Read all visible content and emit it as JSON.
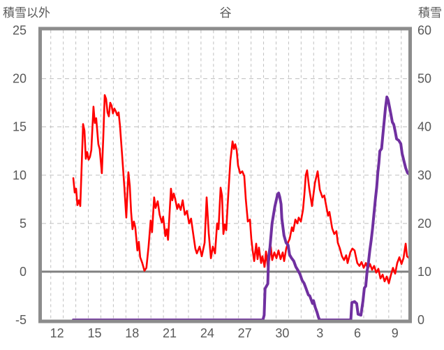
{
  "header": {
    "left_axis_title": "積雪以外",
    "title": "谷",
    "right_axis_title": "積雪"
  },
  "chart_data": {
    "type": "line",
    "title": "谷",
    "left_axis": {
      "title": "積雪以外",
      "min": -5,
      "max": 25,
      "ticks": [
        25,
        20,
        15,
        10,
        5,
        0,
        -5
      ]
    },
    "right_axis": {
      "title": "積雪",
      "min": 0,
      "max": 60,
      "ticks": [
        60,
        50,
        40,
        30,
        20,
        10,
        0
      ]
    },
    "x_axis": {
      "tick_labels": [
        "12",
        "15",
        "18",
        "21",
        "24",
        "27",
        "30",
        "3",
        "6",
        "9"
      ],
      "tick_day_indices": [
        0,
        3,
        6,
        9,
        12,
        15,
        18,
        21,
        24,
        27
      ],
      "gridline_every_days": 1,
      "day_range_shown": [
        -0.5,
        28.6
      ]
    },
    "grid": {
      "vertical_dashed": true,
      "horizontal_dashed": true,
      "zero_line_solid": true
    },
    "legend": "none",
    "colors": {
      "red_line": "#FF0000",
      "purple_line": "#7030A0",
      "frame": "#8C8C8C",
      "gridline": "#BFBFBF",
      "zero_line": "#808080",
      "text": "#595959"
    },
    "series": [
      {
        "name": "red-line-left-axis",
        "axis": "left",
        "color": "#FF0000",
        "width": 2.6,
        "points": [
          [
            1.3,
            9.7
          ],
          [
            1.41,
            8.2
          ],
          [
            1.52,
            8.6
          ],
          [
            1.63,
            6.9
          ],
          [
            1.75,
            7.4
          ],
          [
            1.86,
            6.8
          ],
          [
            1.97,
            11.0
          ],
          [
            2.08,
            15.3
          ],
          [
            2.19,
            14.6
          ],
          [
            2.3,
            11.7
          ],
          [
            2.41,
            12.4
          ],
          [
            2.52,
            11.6
          ],
          [
            2.63,
            11.9
          ],
          [
            2.74,
            12.6
          ],
          [
            2.91,
            17.1
          ],
          [
            3.02,
            15.4
          ],
          [
            3.13,
            15.9
          ],
          [
            3.3,
            13.2
          ],
          [
            3.41,
            12.7
          ],
          [
            3.58,
            10.2
          ],
          [
            3.7,
            14.0
          ],
          [
            3.81,
            18.3
          ],
          [
            3.92,
            17.9
          ],
          [
            4.03,
            16.5
          ],
          [
            4.14,
            16.1
          ],
          [
            4.25,
            17.5
          ],
          [
            4.36,
            17.2
          ],
          [
            4.47,
            16.4
          ],
          [
            4.58,
            16.9
          ],
          [
            4.7,
            16.6
          ],
          [
            4.81,
            16.2
          ],
          [
            4.92,
            16.5
          ],
          [
            5.03,
            15.1
          ],
          [
            5.2,
            12.1
          ],
          [
            5.37,
            8.9
          ],
          [
            5.53,
            5.6
          ],
          [
            5.7,
            10.3
          ],
          [
            5.81,
            8.9
          ],
          [
            5.92,
            6.2
          ],
          [
            6.03,
            4.4
          ],
          [
            6.14,
            5.2
          ],
          [
            6.25,
            4.6
          ],
          [
            6.42,
            2.2
          ],
          [
            6.53,
            3.1
          ],
          [
            6.64,
            1.5
          ],
          [
            6.81,
            0.9
          ],
          [
            6.98,
            0.1
          ],
          [
            7.14,
            0.4
          ],
          [
            7.31,
            2.6
          ],
          [
            7.48,
            5.3
          ],
          [
            7.59,
            4.1
          ],
          [
            7.76,
            7.7
          ],
          [
            7.87,
            6.6
          ],
          [
            8.04,
            7.3
          ],
          [
            8.2,
            5.9
          ],
          [
            8.37,
            5.1
          ],
          [
            8.48,
            5.7
          ],
          [
            8.65,
            3.7
          ],
          [
            8.76,
            4.4
          ],
          [
            8.87,
            3.3
          ],
          [
            9.1,
            8.6
          ],
          [
            9.21,
            7.4
          ],
          [
            9.32,
            8.1
          ],
          [
            9.43,
            7.6
          ],
          [
            9.6,
            6.5
          ],
          [
            9.71,
            7.0
          ],
          [
            9.88,
            6.4
          ],
          [
            10.04,
            7.4
          ],
          [
            10.21,
            5.9
          ],
          [
            10.38,
            6.3
          ],
          [
            10.55,
            5.0
          ],
          [
            10.71,
            5.5
          ],
          [
            10.88,
            3.9
          ],
          [
            11.05,
            2.4
          ],
          [
            11.17,
            1.9
          ],
          [
            11.39,
            2.6
          ],
          [
            11.56,
            1.6
          ],
          [
            11.79,
            3.0
          ],
          [
            11.95,
            7.7
          ],
          [
            12.12,
            4.0
          ],
          [
            12.29,
            1.4
          ],
          [
            12.45,
            2.6
          ],
          [
            12.62,
            1.9
          ],
          [
            12.79,
            5.0
          ],
          [
            12.9,
            4.4
          ],
          [
            13.07,
            8.7
          ],
          [
            13.18,
            7.9
          ],
          [
            13.29,
            3.9
          ],
          [
            13.4,
            4.9
          ],
          [
            13.52,
            4.3
          ],
          [
            13.68,
            8.0
          ],
          [
            13.85,
            11.5
          ],
          [
            14.02,
            13.5
          ],
          [
            14.13,
            12.7
          ],
          [
            14.24,
            13.2
          ],
          [
            14.35,
            12.6
          ],
          [
            14.46,
            11.0
          ],
          [
            14.63,
            10.2
          ],
          [
            14.8,
            10.4
          ],
          [
            14.96,
            9.9
          ],
          [
            15.08,
            7.5
          ],
          [
            15.24,
            5.2
          ],
          [
            15.41,
            5.4
          ],
          [
            15.52,
            3.4
          ],
          [
            15.63,
            2.2
          ],
          [
            15.75,
            1.1
          ],
          [
            15.91,
            2.9
          ],
          [
            16.02,
            1.3
          ],
          [
            16.13,
            2.5
          ],
          [
            16.3,
            0.9
          ],
          [
            16.41,
            1.6
          ],
          [
            16.58,
            0.5
          ],
          [
            16.69,
            2.1
          ],
          [
            16.86,
            0.3
          ],
          [
            17.08,
            2.6
          ],
          [
            17.19,
            1.2
          ],
          [
            17.36,
            2.0
          ],
          [
            17.53,
            1.4
          ],
          [
            17.69,
            2.2
          ],
          [
            17.86,
            1.3
          ],
          [
            18.03,
            2.0
          ],
          [
            18.14,
            1.1
          ],
          [
            18.31,
            2.4
          ],
          [
            18.48,
            3.1
          ],
          [
            18.59,
            3.4
          ],
          [
            18.76,
            4.6
          ],
          [
            18.87,
            4.2
          ],
          [
            19.04,
            5.4
          ],
          [
            19.2,
            5.0
          ],
          [
            19.31,
            5.6
          ],
          [
            19.48,
            5.2
          ],
          [
            19.65,
            6.4
          ],
          [
            19.76,
            8.0
          ],
          [
            19.87,
            10.0
          ],
          [
            19.98,
            10.5
          ],
          [
            20.15,
            8.6
          ],
          [
            20.37,
            6.8
          ],
          [
            20.6,
            9.2
          ],
          [
            20.82,
            10.4
          ],
          [
            20.99,
            8.5
          ],
          [
            21.2,
            7.7
          ],
          [
            21.35,
            7.9
          ],
          [
            21.65,
            5.8
          ],
          [
            21.76,
            6.2
          ],
          [
            21.98,
            4.5
          ],
          [
            22.15,
            3.9
          ],
          [
            22.32,
            4.2
          ],
          [
            22.43,
            3.0
          ],
          [
            22.6,
            2.4
          ],
          [
            22.76,
            1.6
          ],
          [
            22.93,
            1.2
          ],
          [
            23.1,
            1.7
          ],
          [
            23.21,
            0.9
          ],
          [
            23.43,
            2.0
          ],
          [
            23.6,
            2.4
          ],
          [
            23.77,
            2.2
          ],
          [
            23.99,
            0.9
          ],
          [
            24.16,
            0.6
          ],
          [
            24.33,
            1.0
          ],
          [
            24.5,
            0.4
          ],
          [
            24.67,
            0.9
          ],
          [
            24.83,
            0.3
          ],
          [
            25.0,
            0.8
          ],
          [
            25.17,
            0.2
          ],
          [
            25.33,
            0.6
          ],
          [
            25.5,
            -0.1
          ],
          [
            25.67,
            0.3
          ],
          [
            25.84,
            -0.7
          ],
          [
            26.01,
            -0.3
          ],
          [
            26.17,
            -1.0
          ],
          [
            26.34,
            -0.5
          ],
          [
            26.51,
            -1.2
          ],
          [
            26.68,
            -0.3
          ],
          [
            26.84,
            0.4
          ],
          [
            27.01,
            -0.2
          ],
          [
            27.18,
            0.9
          ],
          [
            27.35,
            1.5
          ],
          [
            27.52,
            0.8
          ],
          [
            27.68,
            1.4
          ],
          [
            27.85,
            2.9
          ],
          [
            27.96,
            1.6
          ],
          [
            28.13,
            1.4
          ],
          [
            28.24,
            2.2
          ]
        ]
      },
      {
        "name": "purple-line-right-axis",
        "axis": "right",
        "color": "#7030A0",
        "width": 4,
        "points": [
          [
            1.3,
            0
          ],
          [
            16.45,
            0
          ],
          [
            16.55,
            1
          ],
          [
            16.62,
            6.5
          ],
          [
            16.73,
            7
          ],
          [
            16.84,
            7.5
          ],
          [
            16.9,
            13
          ],
          [
            17.01,
            15
          ],
          [
            17.18,
            20
          ],
          [
            17.4,
            23.5
          ],
          [
            17.62,
            26
          ],
          [
            17.7,
            26.3
          ],
          [
            17.79,
            25.5
          ],
          [
            17.9,
            24
          ],
          [
            17.96,
            21
          ],
          [
            18.13,
            17.5
          ],
          [
            18.3,
            16
          ],
          [
            18.46,
            15.5
          ],
          [
            18.58,
            13.5
          ],
          [
            18.74,
            12.8
          ],
          [
            18.91,
            12.2
          ],
          [
            19.08,
            11
          ],
          [
            19.24,
            10.3
          ],
          [
            19.41,
            9.5
          ],
          [
            19.58,
            8.2
          ],
          [
            19.74,
            7.6
          ],
          [
            19.91,
            6.4
          ],
          [
            20.08,
            5.2
          ],
          [
            20.19,
            5.0
          ],
          [
            20.3,
            4.2
          ],
          [
            20.41,
            3.4
          ],
          [
            20.49,
            4.0
          ],
          [
            20.63,
            2.6
          ],
          [
            20.77,
            1.6
          ],
          [
            20.88,
            0.6
          ],
          [
            20.97,
            0
          ],
          [
            23.47,
            0
          ],
          [
            23.55,
            3.6
          ],
          [
            23.77,
            3.8
          ],
          [
            23.94,
            3.4
          ],
          [
            24.05,
            1.2
          ],
          [
            24.28,
            1.0
          ],
          [
            24.44,
            3.9
          ],
          [
            24.55,
            6.6
          ],
          [
            24.66,
            7.0
          ],
          [
            24.77,
            10
          ],
          [
            24.88,
            12
          ],
          [
            24.99,
            14.5
          ],
          [
            25.1,
            16.5
          ],
          [
            25.21,
            19
          ],
          [
            25.32,
            22
          ],
          [
            25.43,
            25
          ],
          [
            25.54,
            27.5
          ],
          [
            25.63,
            30.5
          ],
          [
            25.71,
            32.5
          ],
          [
            25.79,
            35
          ],
          [
            25.93,
            35.5
          ],
          [
            26.02,
            38
          ],
          [
            26.13,
            41
          ],
          [
            26.24,
            44
          ],
          [
            26.35,
            46.2
          ],
          [
            26.46,
            45.5
          ],
          [
            26.57,
            44
          ],
          [
            26.68,
            42.5
          ],
          [
            26.79,
            41
          ],
          [
            26.9,
            40.5
          ],
          [
            27.02,
            39
          ],
          [
            27.13,
            37.5
          ],
          [
            27.3,
            37.2
          ],
          [
            27.46,
            36.5
          ],
          [
            27.57,
            34.5
          ],
          [
            27.71,
            33
          ],
          [
            27.85,
            31.5
          ],
          [
            28.0,
            30.5
          ],
          [
            28.13,
            30.2
          ],
          [
            28.24,
            30
          ]
        ]
      }
    ]
  }
}
